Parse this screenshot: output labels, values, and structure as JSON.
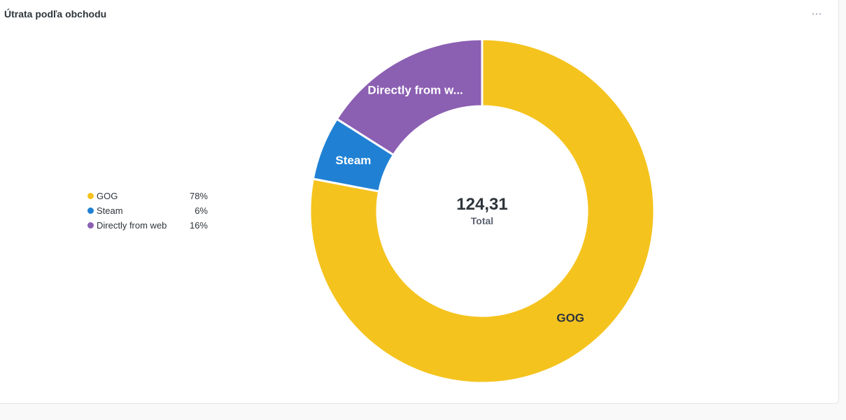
{
  "card": {
    "title": "Útrata podľa obchodu"
  },
  "chart_data": {
    "type": "pie",
    "series": [
      {
        "name": "GOG",
        "percent": "78%",
        "slice_label": "GOG",
        "value": 0.78,
        "color": "#F5C31E",
        "label_color": "#2e353b"
      },
      {
        "name": "Steam",
        "percent": "6%",
        "slice_label": "Steam",
        "value": 0.06,
        "color": "#2081D4",
        "label_color": "#ffffff"
      },
      {
        "name": "Directly from web",
        "percent": "16%",
        "slice_label": "Directly from w...",
        "value": 0.16,
        "color": "#8B5FB2",
        "label_color": "#ffffff"
      }
    ],
    "total_value": "124,31",
    "total_label": "Total",
    "legend_position": "left"
  }
}
